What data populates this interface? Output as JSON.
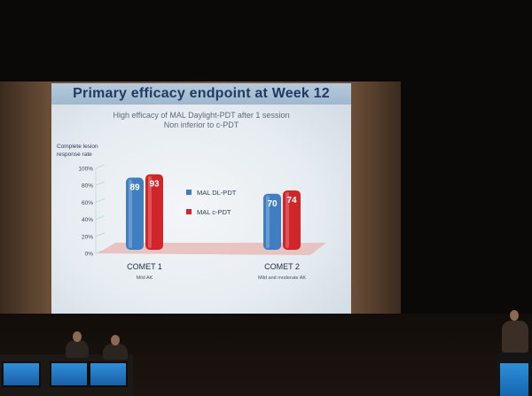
{
  "slide": {
    "title": "Primary efficacy endpoint at Week 12",
    "subtitle_line1": "High efficacy of MAL Daylight-PDT after 1 session",
    "subtitle_line2": "Non inferior to c-PDT"
  },
  "colors": {
    "series_dl_pdt": "#3f7fc1",
    "series_c_pdt": "#d0262b",
    "title_text": "#1f3b63",
    "floor": "#e6bcb8"
  },
  "chart_data": {
    "type": "bar",
    "title": "",
    "ylabel": "Complete lesion response rate",
    "y_ticks": [
      "100%",
      "80%",
      "60%",
      "40%",
      "20%",
      "0%"
    ],
    "ylim": [
      0,
      100
    ],
    "categories": [
      {
        "name": "COMET 1",
        "sub": "Mild AK"
      },
      {
        "name": "COMET 2",
        "sub": "Mild and moderate AK"
      }
    ],
    "series": [
      {
        "name": "MAL DL-PDT",
        "values": [
          89,
          70
        ]
      },
      {
        "name": "MAL c-PDT",
        "values": [
          93,
          74
        ]
      }
    ],
    "legend_position": "center"
  }
}
